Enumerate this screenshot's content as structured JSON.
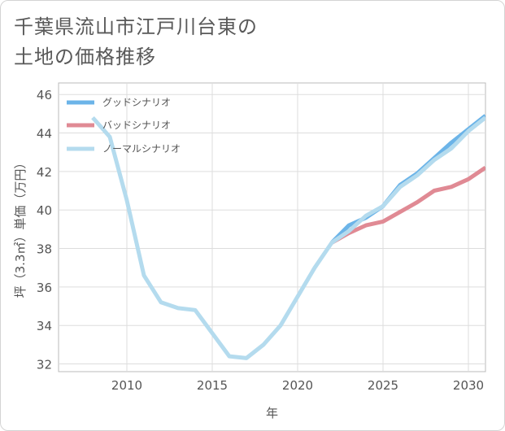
{
  "chart_data": {
    "type": "line",
    "title_lines": [
      "千葉県流山市江戸川台東の",
      "土地の価格推移"
    ],
    "xlabel": "年",
    "ylabel": "坪（3.3㎡）単価（万円）",
    "xlim": [
      2006,
      2031
    ],
    "ylim": [
      31.6,
      46.6
    ],
    "xticks": [
      2010,
      2015,
      2020,
      2025,
      2030
    ],
    "yticks": [
      32,
      34,
      36,
      38,
      40,
      42,
      44,
      46
    ],
    "legend_position": "top-left",
    "series": [
      {
        "name": "グッドシナリオ",
        "color": "#6cb4e8",
        "x": [
          2022,
          2023,
          2024,
          2025,
          2026,
          2027,
          2028,
          2029,
          2030,
          2031
        ],
        "y": [
          38.3,
          39.2,
          39.6,
          40.2,
          41.3,
          41.9,
          42.7,
          43.5,
          44.2,
          44.9
        ]
      },
      {
        "name": "バッドシナリオ",
        "color": "#e08a94",
        "x": [
          2022,
          2023,
          2024,
          2025,
          2026,
          2027,
          2028,
          2029,
          2030,
          2031
        ],
        "y": [
          38.3,
          38.8,
          39.2,
          39.4,
          39.9,
          40.4,
          41.0,
          41.2,
          41.6,
          42.2
        ]
      },
      {
        "name": "ノーマルシナリオ",
        "color": "#b4dbee",
        "x": [
          2008,
          2009,
          2010,
          2011,
          2012,
          2013,
          2014,
          2015,
          2016,
          2017,
          2018,
          2019,
          2020,
          2021,
          2022,
          2023,
          2024,
          2025,
          2026,
          2027,
          2028,
          2029,
          2030,
          2031
        ],
        "y": [
          44.8,
          43.8,
          40.5,
          36.6,
          35.2,
          34.9,
          34.8,
          33.6,
          32.4,
          32.3,
          33.0,
          34.0,
          35.5,
          37.0,
          38.3,
          38.9,
          39.7,
          40.2,
          41.2,
          41.8,
          42.6,
          43.2,
          44.1,
          44.8
        ]
      }
    ]
  }
}
